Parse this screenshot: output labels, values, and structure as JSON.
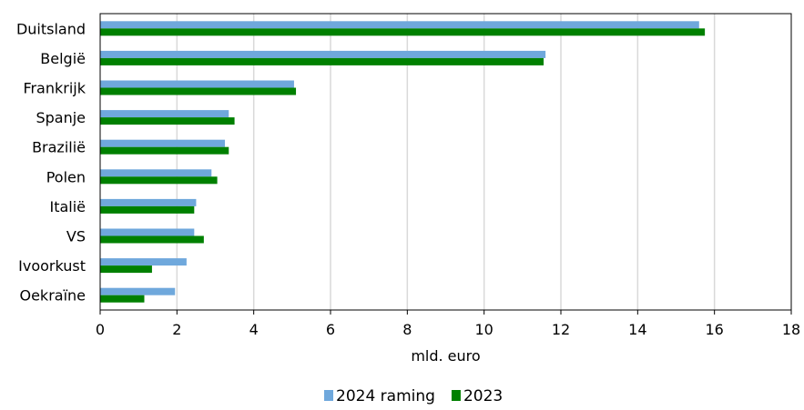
{
  "chart_data": {
    "type": "bar",
    "orientation": "horizontal",
    "categories": [
      "Duitsland",
      "België",
      "Frankrijk",
      "Spanje",
      "Brazilië",
      "Polen",
      "Italië",
      "VS",
      "Ivoorkust",
      "Oekraïne"
    ],
    "series": [
      {
        "name": "2024 raming",
        "color": "#6fa8dc",
        "values": [
          15.6,
          11.6,
          5.05,
          3.35,
          3.25,
          2.9,
          2.5,
          2.45,
          2.25,
          1.95
        ]
      },
      {
        "name": "2023",
        "color": "#008000",
        "values": [
          15.75,
          11.55,
          5.1,
          3.5,
          3.35,
          3.05,
          2.45,
          2.7,
          1.35,
          1.15
        ]
      }
    ],
    "xticks": [
      "0",
      "2",
      "4",
      "6",
      "8",
      "10",
      "12",
      "14",
      "16",
      "18"
    ],
    "xlim": [
      0,
      18
    ],
    "xlabel": "mld. euro",
    "grid": "vertical",
    "legend_position": "bottom"
  }
}
